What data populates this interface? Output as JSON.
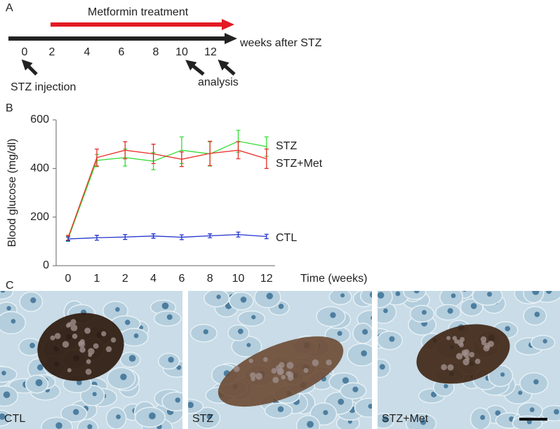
{
  "panel_labels": [
    "A",
    "B",
    "C"
  ],
  "timeline": {
    "treatment_label": "Metformin treatment",
    "treatment_color": "#e31b23",
    "axis_label": "weeks after STZ",
    "weeks": [
      0,
      2,
      4,
      6,
      8,
      10,
      12
    ],
    "annotations": [
      "STZ injection",
      "analysis"
    ]
  },
  "chart_data": {
    "type": "line",
    "x_label": "Time (weeks)",
    "y_label": "Blood glucose (mg/dl)",
    "categories": [
      "0",
      "1",
      "2",
      "4",
      "6",
      "8",
      "10",
      "12"
    ],
    "ylim": [
      0,
      600
    ],
    "yticks": [
      0,
      200,
      400,
      600
    ],
    "series": [
      {
        "name": "STZ",
        "color": "#33dd33",
        "values": [
          110,
          433,
          445,
          430,
          475,
          460,
          512,
          490
        ],
        "errors": [
          10,
          25,
          35,
          35,
          55,
          50,
          45,
          40
        ]
      },
      {
        "name": "STZ+Met",
        "color": "#e8312a",
        "values": [
          115,
          445,
          475,
          460,
          438,
          462,
          475,
          440
        ],
        "errors": [
          10,
          35,
          35,
          40,
          30,
          50,
          35,
          40
        ]
      },
      {
        "name": "CTL",
        "color": "#2233cc",
        "values": [
          110,
          115,
          118,
          122,
          117,
          123,
          128,
          120
        ],
        "errors": [
          8,
          10,
          10,
          9,
          10,
          8,
          10,
          9
        ]
      }
    ]
  },
  "micrographs": [
    "CTL",
    "STZ",
    "STZ+Met"
  ]
}
